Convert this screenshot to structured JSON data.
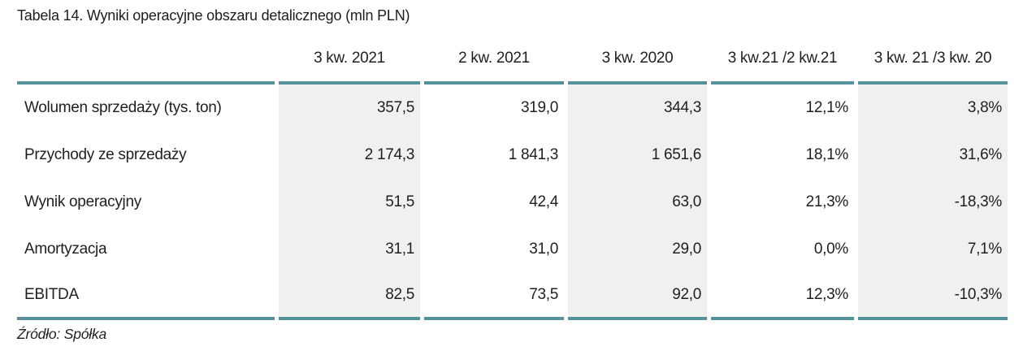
{
  "colors": {
    "accent_teal": "#54939c",
    "shaded_column_bg": "#f0f0ef"
  },
  "chart_data": {
    "type": "table",
    "title": "Tabela 14. Wyniki operacyjne obszaru detalicznego (mln PLN)",
    "columns": [
      "3 kw. 2021",
      "2 kw. 2021",
      "3 kw. 2020",
      "3 kw.21 /2 kw.21",
      "3 kw. 21 /3 kw. 20"
    ],
    "shaded_columns": [
      "3 kw. 2021",
      "3 kw. 2020",
      "3 kw. 21 /3 kw. 20"
    ],
    "rows": [
      {
        "label": "Wolumen sprzedaży (tys. ton)",
        "values": [
          "357,5",
          "319,0",
          "344,3",
          "12,1%",
          "3,8%"
        ]
      },
      {
        "label": "Przychody ze sprzedaży",
        "values": [
          "2 174,3",
          "1 841,3",
          "1 651,6",
          "18,1%",
          "31,6%"
        ]
      },
      {
        "label": "Wynik operacyjny",
        "values": [
          "51,5",
          "42,4",
          "63,0",
          "21,3%",
          "-18,3%"
        ]
      },
      {
        "label": "Amortyzacja",
        "values": [
          "31,1",
          "31,0",
          "29,0",
          "0,0%",
          "7,1%"
        ]
      },
      {
        "label": "EBITDA",
        "values": [
          "82,5",
          "73,5",
          "92,0",
          "12,3%",
          "-10,3%"
        ]
      }
    ],
    "source": "Źródło: Spółka"
  }
}
